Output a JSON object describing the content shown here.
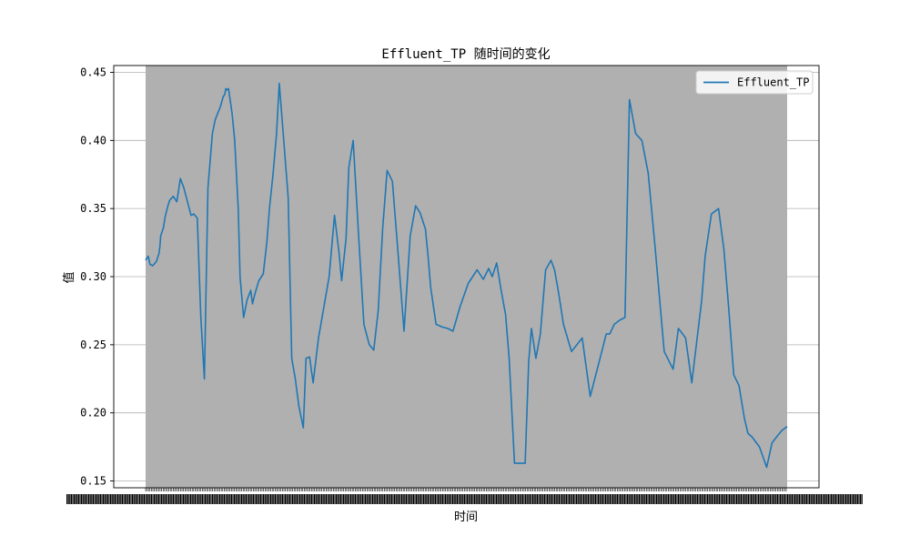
{
  "chart_data": {
    "type": "line",
    "title": "Effluent_TP 随时间的变化",
    "xlabel": "时间",
    "ylabel": "值",
    "ylim": [
      0.145,
      0.455
    ],
    "yticks": [
      0.15,
      0.2,
      0.25,
      0.3,
      0.35,
      0.4,
      0.45
    ],
    "ytick_labels": [
      "0.15",
      "0.20",
      "0.25",
      "0.30",
      "0.35",
      "0.40",
      "0.45"
    ],
    "grid": "y",
    "legend_position": "top-right",
    "x_range": [
      0,
      720
    ],
    "background_band": "#b0b0b0",
    "series": [
      {
        "name": "Effluent_TP",
        "color": "#1f77b4",
        "x": [
          0,
          3,
          5,
          8,
          12,
          15,
          16,
          17,
          20,
          22,
          25,
          27,
          31,
          35,
          39,
          43,
          47,
          51,
          54,
          58,
          62,
          66,
          70,
          75,
          78,
          81,
          84,
          87,
          89,
          90,
          91,
          93,
          97,
          100,
          104,
          106,
          110,
          114,
          118,
          120,
          121,
          123,
          127,
          132,
          136,
          139,
          143,
          147,
          150,
          155,
          160,
          164,
          168,
          172,
          177,
          180,
          184,
          188,
          194,
          206,
          212,
          217,
          220,
          225,
          228,
          233,
          239,
          245,
          251,
          256,
          261,
          266,
          271,
          277,
          283,
          290,
          297,
          303,
          308,
          314,
          317,
          320,
          326,
          333,
          339,
          345,
          353,
          362,
          372,
          379,
          385,
          389,
          394,
          399,
          404,
          408,
          414,
          420,
          426,
          430,
          433,
          438,
          443,
          449,
          455,
          459,
          463,
          469,
          478,
          490,
          499,
          512,
          517,
          521,
          526,
          532,
          538,
          543,
          550,
          557,
          564,
          572,
          582,
          592,
          598,
          606,
          613,
          619,
          624,
          628,
          635,
          643,
          649,
          654,
          660,
          666,
          672,
          676,
          681,
          689,
          697,
          703,
          709,
          714,
          720
        ],
        "y": [
          0.312,
          0.315,
          0.309,
          0.308,
          0.311,
          0.317,
          0.322,
          0.33,
          0.336,
          0.344,
          0.352,
          0.356,
          0.359,
          0.355,
          0.372,
          0.365,
          0.355,
          0.345,
          0.346,
          0.343,
          0.27,
          0.225,
          0.365,
          0.405,
          0.415,
          0.42,
          0.425,
          0.432,
          0.434,
          0.438,
          0.437,
          0.438,
          0.42,
          0.4,
          0.35,
          0.3,
          0.27,
          0.283,
          0.29,
          0.28,
          0.283,
          0.288,
          0.297,
          0.302,
          0.325,
          0.35,
          0.375,
          0.405,
          0.442,
          0.4,
          0.358,
          0.24,
          0.225,
          0.205,
          0.189,
          0.24,
          0.241,
          0.222,
          0.255,
          0.3,
          0.345,
          0.318,
          0.297,
          0.328,
          0.38,
          0.4,
          0.331,
          0.265,
          0.25,
          0.246,
          0.275,
          0.335,
          0.378,
          0.37,
          0.32,
          0.26,
          0.33,
          0.352,
          0.347,
          0.335,
          0.315,
          0.292,
          0.265,
          0.263,
          0.262,
          0.26,
          0.278,
          0.295,
          0.305,
          0.298,
          0.306,
          0.3,
          0.31,
          0.29,
          0.272,
          0.24,
          0.163,
          0.163,
          0.163,
          0.238,
          0.262,
          0.24,
          0.258,
          0.305,
          0.312,
          0.305,
          0.29,
          0.265,
          0.245,
          0.255,
          0.212,
          0.245,
          0.258,
          0.258,
          0.265,
          0.268,
          0.27,
          0.43,
          0.405,
          0.4,
          0.376,
          0.32,
          0.245,
          0.232,
          0.262,
          0.255,
          0.222,
          0.255,
          0.282,
          0.315,
          0.346,
          0.35,
          0.32,
          0.28,
          0.228,
          0.22,
          0.196,
          0.185,
          0.182,
          0.175,
          0.16,
          0.178,
          0.183,
          0.187,
          0.19
        ]
      }
    ]
  }
}
